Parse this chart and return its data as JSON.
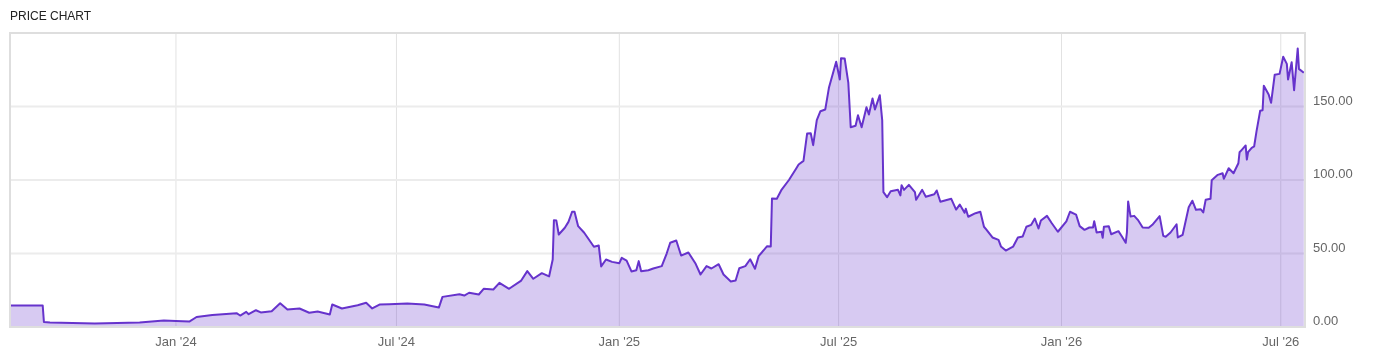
{
  "chart_data": {
    "type": "area",
    "title": "PRICE CHART",
    "x": [
      "2023-08-17",
      "2023-09-13",
      "2023-09-14",
      "2023-09-19",
      "2023-10-26",
      "2023-12-02",
      "2023-12-22",
      "2024-01-01",
      "2024-01-12",
      "2024-01-18",
      "2024-01-31",
      "2024-02-20",
      "2024-02-23",
      "2024-02-28",
      "2024-03-01",
      "2024-03-07",
      "2024-03-11",
      "2024-03-20",
      "2024-03-27",
      "2024-04-02",
      "2024-04-12",
      "2024-04-20",
      "2024-04-27",
      "2024-05-07",
      "2024-05-09",
      "2024-05-17",
      "2024-05-30",
      "2024-06-06",
      "2024-06-11",
      "2024-06-17",
      "2024-06-25",
      "2024-07-10",
      "2024-07-24",
      "2024-08-05",
      "2024-08-08",
      "2024-08-22",
      "2024-08-26",
      "2024-08-30",
      "2024-09-07",
      "2024-09-11",
      "2024-09-19",
      "2024-09-24",
      "2024-10-02",
      "2024-10-12",
      "2024-10-17",
      "2024-10-22",
      "2024-10-29",
      "2024-11-04",
      "2024-11-07",
      "2024-11-08",
      "2024-11-10",
      "2024-11-12",
      "2024-11-17",
      "2024-11-20",
      "2024-11-23",
      "2024-11-25",
      "2024-11-28",
      "2024-12-03",
      "2024-12-11",
      "2024-12-15",
      "2024-12-17",
      "2024-12-21",
      "2024-12-26",
      "2025-01-01",
      "2025-01-03",
      "2025-01-07",
      "2025-01-11",
      "2025-01-15",
      "2025-01-17",
      "2025-01-19",
      "2025-01-25",
      "2025-01-29",
      "2025-02-05",
      "2025-02-09",
      "2025-02-12",
      "2025-02-17",
      "2025-02-21",
      "2025-02-27",
      "2025-03-05",
      "2025-03-09",
      "2025-03-14",
      "2025-03-18",
      "2025-03-24",
      "2025-03-28",
      "2025-04-03",
      "2025-04-07",
      "2025-04-10",
      "2025-04-15",
      "2025-04-19",
      "2025-04-23",
      "2025-04-26",
      "2025-05-03",
      "2025-05-06",
      "2025-05-07",
      "2025-05-11",
      "2025-05-15",
      "2025-05-21",
      "2025-05-27",
      "2025-05-29",
      "2025-06-02",
      "2025-06-05",
      "2025-06-08",
      "2025-06-10",
      "2025-06-13",
      "2025-06-16",
      "2025-06-20",
      "2025-06-23",
      "2025-06-29",
      "2025-07-02",
      "2025-07-03",
      "2025-07-06",
      "2025-07-09",
      "2025-07-11",
      "2025-07-15",
      "2025-07-17",
      "2025-07-20",
      "2025-07-24",
      "2025-07-26",
      "2025-07-29",
      "2025-07-31",
      "2025-08-04",
      "2025-08-06",
      "2025-08-07",
      "2025-08-10",
      "2025-08-13",
      "2025-08-19",
      "2025-08-21",
      "2025-08-22",
      "2025-08-24",
      "2025-08-28",
      "2025-09-02",
      "2025-09-03",
      "2025-09-08",
      "2025-09-11",
      "2025-09-18",
      "2025-09-20",
      "2025-09-23",
      "2025-10-02",
      "2025-10-06",
      "2025-10-09",
      "2025-10-13",
      "2025-10-14",
      "2025-10-16",
      "2025-10-22",
      "2025-10-26",
      "2025-10-29",
      "2025-10-31",
      "2025-11-05",
      "2025-11-10",
      "2025-11-12",
      "2025-11-16",
      "2025-11-22",
      "2025-11-26",
      "2025-11-30",
      "2025-12-03",
      "2025-12-07",
      "2025-12-10",
      "2025-12-13",
      "2025-12-15",
      "2025-12-20",
      "2025-12-24",
      "2025-12-29",
      "2026-01-05",
      "2026-01-08",
      "2026-01-13",
      "2026-01-16",
      "2026-01-20",
      "2026-01-24",
      "2026-01-27",
      "2026-01-28",
      "2026-01-30",
      "2026-02-03",
      "2026-02-04",
      "2026-02-05",
      "2026-02-09",
      "2026-02-11",
      "2026-02-17",
      "2026-02-20",
      "2026-02-23",
      "2026-02-24",
      "2026-02-25",
      "2026-02-27",
      "2026-03-02",
      "2026-03-05",
      "2026-03-09",
      "2026-03-14",
      "2026-03-17",
      "2026-03-23",
      "2026-03-26",
      "2026-03-28",
      "2026-04-01",
      "2026-04-06",
      "2026-04-07",
      "2026-04-11",
      "2026-04-16",
      "2026-04-19",
      "2026-04-22",
      "2026-04-26",
      "2026-04-28",
      "2026-04-30",
      "2026-05-04",
      "2026-05-05",
      "2026-05-10",
      "2026-05-14",
      "2026-05-15",
      "2026-05-19",
      "2026-05-23",
      "2026-05-27",
      "2026-05-28",
      "2026-05-30",
      "2026-06-02",
      "2026-06-03",
      "2026-06-04",
      "2026-06-07",
      "2026-06-09",
      "2026-06-11",
      "2026-06-14",
      "2026-06-16",
      "2026-06-17",
      "2026-06-21",
      "2026-06-23",
      "2026-06-26",
      "2026-06-30",
      "2026-07-03",
      "2026-07-06",
      "2026-07-07",
      "2026-07-10",
      "2026-07-12",
      "2026-07-15",
      "2026-07-16",
      "2026-07-20"
    ],
    "series": [
      {
        "color": "#6633cc",
        "values": [
          14.6,
          14.6,
          3.4,
          3.1,
          2.4,
          3.1,
          4.4,
          4.1,
          3.7,
          6.8,
          8.2,
          9.4,
          7.8,
          10.3,
          8.7,
          11.4,
          9.9,
          10.7,
          16.2,
          11.9,
          12.6,
          9.7,
          10.5,
          8.5,
          15.3,
          12.6,
          14.8,
          16.5,
          12.6,
          15.3,
          15.5,
          16,
          15.3,
          13.2,
          20.5,
          22.3,
          21.4,
          23.3,
          22.1,
          26,
          25.5,
          30,
          26,
          31.6,
          38,
          32.8,
          36.6,
          34.4,
          45.9,
          72.7,
          72.4,
          62.9,
          67.5,
          71.5,
          78.4,
          78.4,
          68.6,
          64.1,
          54.6,
          55.4,
          41.2,
          45.9,
          44.3,
          43.4,
          47.1,
          45.2,
          37.8,
          38.6,
          44.8,
          38,
          38.6,
          39.8,
          41.4,
          49.8,
          57.3,
          58.8,
          48.6,
          50.7,
          43,
          35.7,
          41.4,
          39.8,
          42.7,
          35.7,
          31,
          31.6,
          40,
          41.4,
          46.1,
          39.6,
          48.2,
          55,
          54.8,
          87.4,
          87.2,
          93.5,
          100,
          107.8,
          110.5,
          113,
          131.6,
          131.8,
          123.7,
          140.7,
          146.8,
          148,
          162.7,
          180.4,
          168.4,
          182.9,
          182.7,
          166.3,
          135.9,
          136.9,
          144,
          135.9,
          149.5,
          144.6,
          155.4,
          148,
          157.7,
          140.5,
          91.7,
          88.3,
          92.4,
          93.3,
          89.5,
          96.5,
          93.3,
          96.7,
          91.7,
          86.5,
          93.3,
          88.6,
          90.3,
          92.9,
          85.2,
          87.2,
          79.9,
          83.3,
          77.7,
          80.4,
          75,
          77.4,
          78.4,
          68.2,
          66.3,
          60.9,
          59.3,
          54.8,
          52,
          54.6,
          60.9,
          61.6,
          68.2,
          69.5,
          73.8,
          67,
          72.4,
          75.6,
          70.6,
          64.8,
          71.8,
          78.4,
          76.5,
          68.6,
          66.1,
          67.7,
          67.7,
          72,
          64.3,
          64.8,
          60.7,
          68.2,
          68.6,
          63.1,
          65.2,
          61.4,
          57.3,
          64.3,
          85.4,
          75.2,
          75.6,
          72.9,
          67.7,
          67.5,
          69.5,
          75.4,
          62,
          61.4,
          64.3,
          69.9,
          60.9,
          62.7,
          81.5,
          85.9,
          79.7,
          80.1,
          77.9,
          86.5,
          87.2,
          99.9,
          103.5,
          104.6,
          100.8,
          108,
          104.6,
          111.4,
          118.9,
          120.7,
          123.5,
          113.9,
          118.9,
          121.9,
          122.8,
          133.2,
          147.1,
          147.5,
          164.1,
          158.2,
          152.5,
          171.6,
          172.2,
          183.8,
          179,
          168.4,
          180.1,
          161.1,
          189.5,
          175.6,
          172.9
        ]
      }
    ],
    "xlim": [
      "2023-08-17",
      "2026-07-21"
    ],
    "xticks": [
      {
        "value": "2024-01-01",
        "label": "Jan '24"
      },
      {
        "value": "2024-07-01",
        "label": "Jul '24"
      },
      {
        "value": "2025-01-01",
        "label": "Jan '25"
      },
      {
        "value": "2025-07-01",
        "label": "Jul '25"
      },
      {
        "value": "2026-01-01",
        "label": "Jan '26"
      },
      {
        "value": "2026-07-01",
        "label": "Jul '26"
      }
    ],
    "ylim": [
      0,
      200
    ],
    "yticks": [
      {
        "value": 0,
        "label": "0.00"
      },
      {
        "value": 50,
        "label": "50.00"
      },
      {
        "value": 100,
        "label": "100.00"
      },
      {
        "value": 150,
        "label": "150.00"
      }
    ],
    "grid": true
  }
}
